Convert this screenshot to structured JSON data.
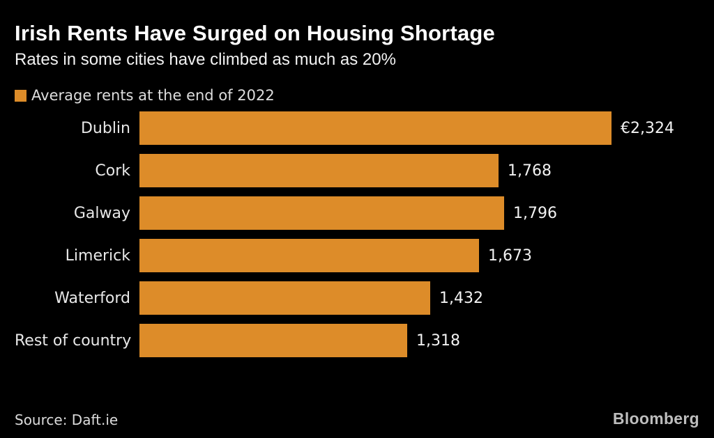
{
  "header": {
    "title": "Irish Rents Have Surged on Housing Shortage",
    "subtitle": "Rates in some cities have climbed as much as 20%"
  },
  "legend": {
    "label": "Average rents at the end of 2022",
    "swatch_color": "#DD8C29"
  },
  "chart_data": {
    "type": "bar",
    "orientation": "horizontal",
    "title": "Irish Rents Have Surged on Housing Shortage",
    "subtitle": "Rates in some cities have climbed as much as 20%",
    "legend": [
      "Average rents at the end of 2022"
    ],
    "legend_position": "top-left",
    "categories": [
      "Dublin",
      "Cork",
      "Galway",
      "Limerick",
      "Waterford",
      "Rest of country"
    ],
    "values": [
      2324,
      1768,
      1796,
      1673,
      1432,
      1318
    ],
    "value_labels": [
      "€2,324",
      "1,768",
      "1,796",
      "1,673",
      "1,432",
      "1,318"
    ],
    "unit": "EUR per month",
    "xlim": [
      0,
      2324
    ],
    "grid": false,
    "bar_color": "#DD8C29",
    "background_color": "#000000"
  },
  "footer": {
    "source": "Source: Daft.ie",
    "brand": "Bloomberg"
  }
}
